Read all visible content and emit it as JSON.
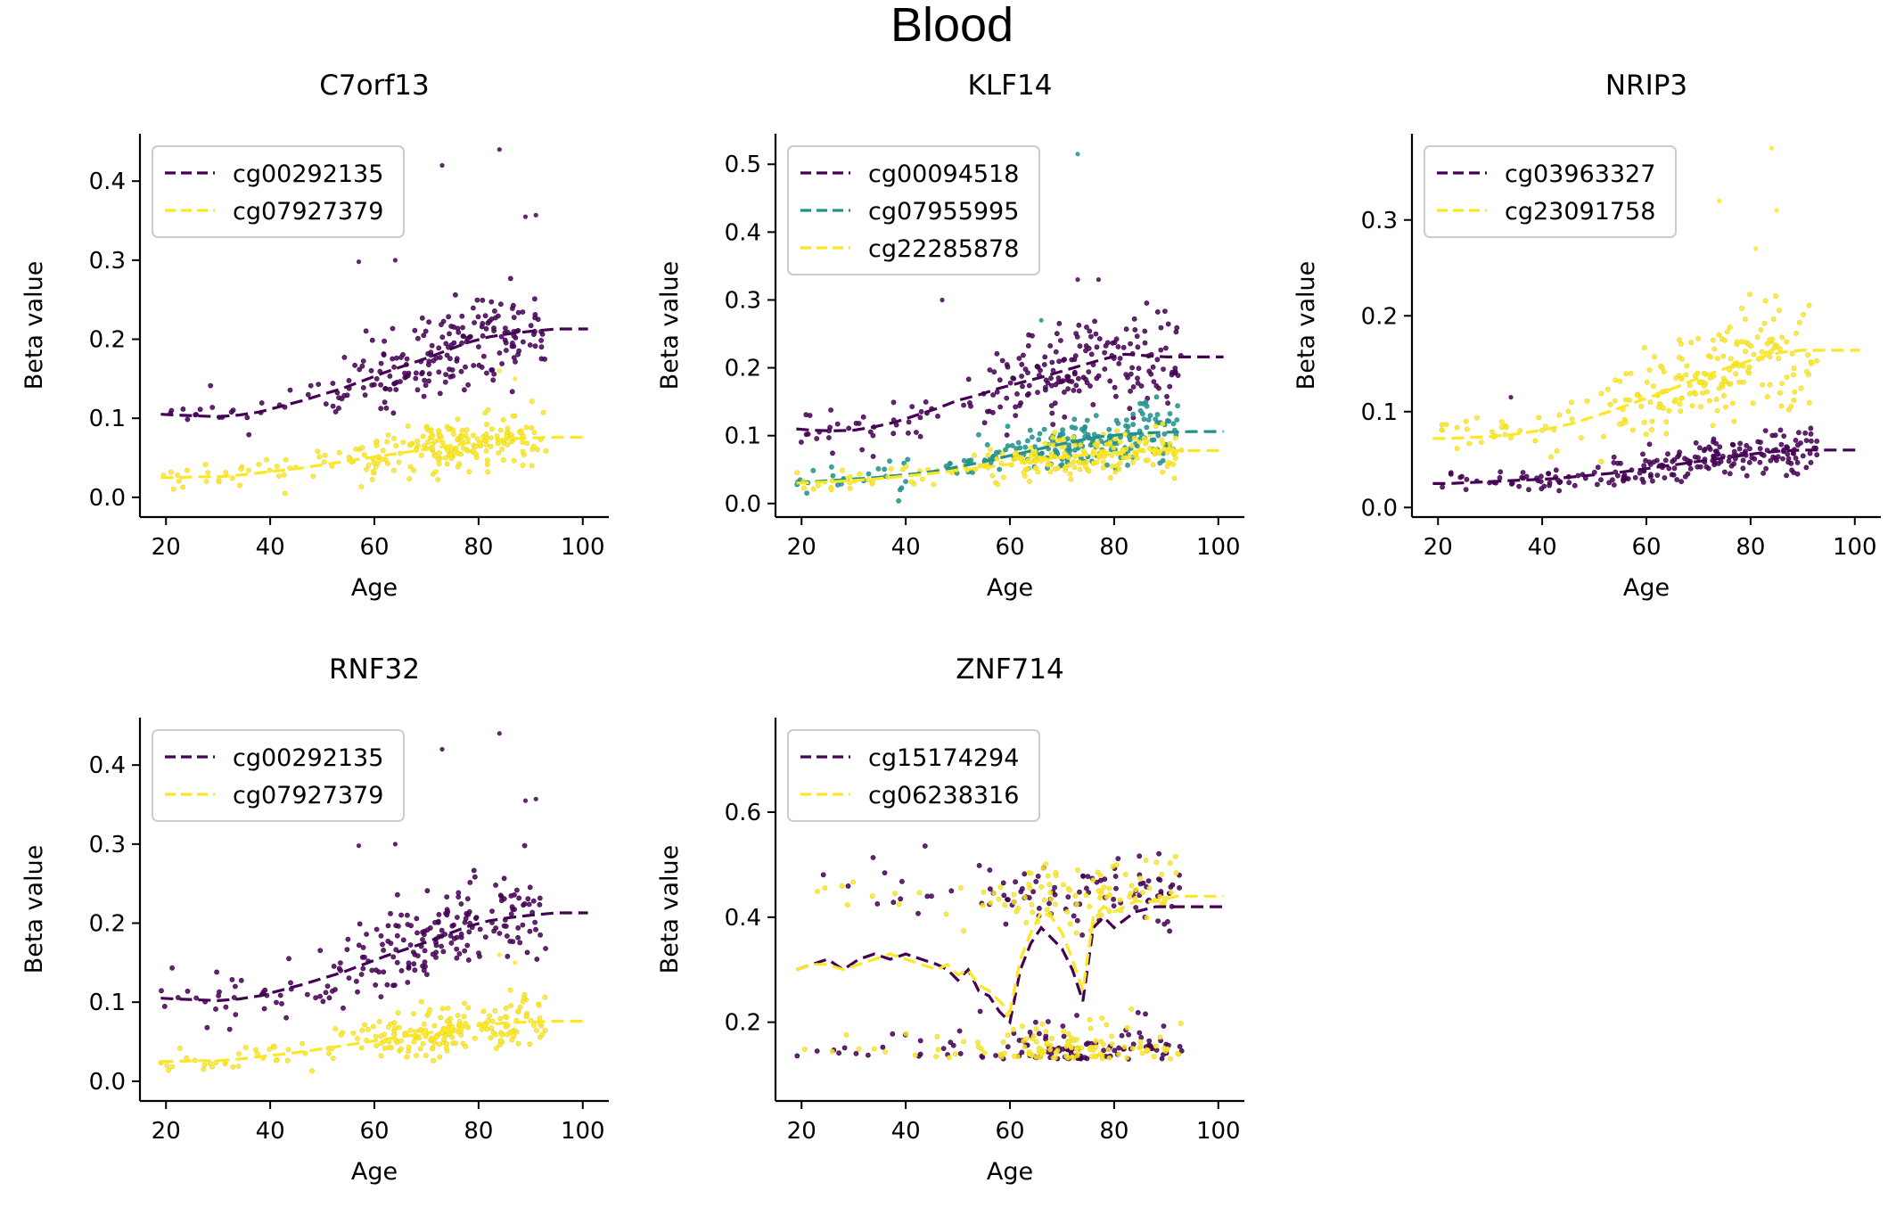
{
  "figure_title": "Blood",
  "chart_data": [
    {
      "type": "scatter",
      "title": "C7orf13",
      "xlabel": "Age",
      "ylabel": "Beta value",
      "xlim": [
        15,
        105
      ],
      "ylim": [
        -0.025,
        0.46
      ],
      "xticks": [
        20,
        40,
        60,
        80,
        100
      ],
      "yticks": [
        0.0,
        0.1,
        0.2,
        0.3,
        0.4
      ],
      "ytick_labels": [
        "0.0",
        "0.1",
        "0.2",
        "0.3",
        "0.4"
      ],
      "legend_position": "upper-left",
      "series": [
        {
          "name": "cg00292135",
          "color": "#440154",
          "x": [
            19,
            22,
            26,
            30,
            34,
            38,
            42,
            46,
            50,
            54,
            58,
            62,
            66,
            70,
            74,
            78,
            82,
            86,
            90,
            95,
            101
          ],
          "y": [
            0.105,
            0.104,
            0.103,
            0.102,
            0.104,
            0.108,
            0.115,
            0.122,
            0.13,
            0.138,
            0.148,
            0.158,
            0.167,
            0.176,
            0.186,
            0.196,
            0.203,
            0.207,
            0.21,
            0.213,
            0.213
          ],
          "spread": 0.045,
          "outliers": [
            [
              73,
              0.42
            ],
            [
              84,
              0.44
            ],
            [
              89,
              0.355
            ],
            [
              91,
              0.357
            ],
            [
              57,
              0.298
            ],
            [
              64,
              0.3
            ]
          ]
        },
        {
          "name": "cg07927379",
          "color": "#fde725",
          "x": [
            19,
            22,
            26,
            30,
            34,
            38,
            42,
            46,
            50,
            54,
            58,
            62,
            66,
            70,
            74,
            78,
            82,
            86,
            90,
            95,
            101
          ],
          "y": [
            0.025,
            0.025,
            0.026,
            0.026,
            0.028,
            0.031,
            0.034,
            0.037,
            0.041,
            0.045,
            0.049,
            0.053,
            0.057,
            0.061,
            0.065,
            0.069,
            0.072,
            0.074,
            0.075,
            0.076,
            0.076
          ],
          "spread": 0.025,
          "outliers": [
            [
              84,
              0.16
            ],
            [
              87,
              0.15
            ]
          ]
        }
      ]
    },
    {
      "type": "scatter",
      "title": "KLF14",
      "xlabel": "Age",
      "ylabel": "Beta value",
      "xlim": [
        15,
        105
      ],
      "ylim": [
        -0.02,
        0.545
      ],
      "xticks": [
        20,
        40,
        60,
        80,
        100
      ],
      "yticks": [
        0.0,
        0.1,
        0.2,
        0.3,
        0.4,
        0.5
      ],
      "ytick_labels": [
        "0.0",
        "0.1",
        "0.2",
        "0.3",
        "0.4",
        "0.5"
      ],
      "legend_position": "upper-left",
      "series": [
        {
          "name": "cg00094518",
          "color": "#440154",
          "x": [
            19,
            22,
            26,
            30,
            34,
            38,
            42,
            46,
            50,
            54,
            58,
            62,
            66,
            70,
            74,
            78,
            82,
            86,
            90,
            95,
            101
          ],
          "y": [
            0.11,
            0.108,
            0.107,
            0.108,
            0.113,
            0.12,
            0.13,
            0.14,
            0.152,
            0.16,
            0.17,
            0.178,
            0.186,
            0.195,
            0.204,
            0.213,
            0.22,
            0.218,
            0.216,
            0.216,
            0.216
          ],
          "spread": 0.05,
          "outliers": [
            [
              73,
              0.33
            ],
            [
              77,
              0.33
            ],
            [
              47,
              0.3
            ]
          ]
        },
        {
          "name": "cg07955995",
          "color": "#21918c",
          "x": [
            19,
            22,
            26,
            30,
            34,
            38,
            42,
            46,
            50,
            54,
            58,
            62,
            66,
            70,
            74,
            78,
            82,
            86,
            90,
            95,
            101
          ],
          "y": [
            0.03,
            0.032,
            0.034,
            0.036,
            0.038,
            0.041,
            0.044,
            0.048,
            0.054,
            0.06,
            0.067,
            0.074,
            0.081,
            0.088,
            0.094,
            0.099,
            0.102,
            0.104,
            0.105,
            0.106,
            0.106
          ],
          "spread": 0.03,
          "outliers": [
            [
              73,
              0.515
            ],
            [
              66,
              0.27
            ]
          ]
        },
        {
          "name": "cg22285878",
          "color": "#fde725",
          "x": [
            19,
            22,
            26,
            30,
            34,
            38,
            42,
            46,
            50,
            54,
            58,
            62,
            66,
            70,
            74,
            78,
            82,
            86,
            90,
            95,
            101
          ],
          "y": [
            0.03,
            0.031,
            0.032,
            0.034,
            0.036,
            0.039,
            0.042,
            0.045,
            0.049,
            0.052,
            0.056,
            0.06,
            0.064,
            0.068,
            0.071,
            0.074,
            0.076,
            0.077,
            0.078,
            0.078,
            0.078
          ],
          "spread": 0.022,
          "outliers": []
        }
      ]
    },
    {
      "type": "scatter",
      "title": "NRIP3",
      "xlabel": "Age",
      "ylabel": "Beta value",
      "xlim": [
        15,
        105
      ],
      "ylim": [
        -0.01,
        0.39
      ],
      "xticks": [
        20,
        40,
        60,
        80,
        100
      ],
      "yticks": [
        0.0,
        0.1,
        0.2,
        0.3
      ],
      "ytick_labels": [
        "0.0",
        "0.1",
        "0.2",
        "0.3"
      ],
      "legend_position": "upper-left",
      "series": [
        {
          "name": "cg03963327",
          "color": "#440154",
          "x": [
            19,
            22,
            26,
            30,
            34,
            38,
            42,
            46,
            50,
            54,
            58,
            62,
            66,
            70,
            74,
            78,
            82,
            86,
            90,
            95,
            101
          ],
          "y": [
            0.025,
            0.025,
            0.026,
            0.027,
            0.028,
            0.029,
            0.03,
            0.032,
            0.034,
            0.036,
            0.039,
            0.042,
            0.045,
            0.048,
            0.051,
            0.054,
            0.057,
            0.059,
            0.06,
            0.06,
            0.06
          ],
          "spread": 0.015,
          "outliers": [
            [
              34,
              0.115
            ]
          ]
        },
        {
          "name": "cg23091758",
          "color": "#fde725",
          "x": [
            19,
            22,
            26,
            30,
            34,
            38,
            42,
            46,
            50,
            54,
            58,
            62,
            66,
            70,
            74,
            78,
            82,
            86,
            90,
            95,
            101
          ],
          "y": [
            0.072,
            0.072,
            0.073,
            0.074,
            0.076,
            0.079,
            0.083,
            0.088,
            0.095,
            0.102,
            0.11,
            0.118,
            0.126,
            0.135,
            0.143,
            0.15,
            0.157,
            0.162,
            0.164,
            0.164,
            0.164
          ],
          "spread": 0.04,
          "outliers": [
            [
              84,
              0.375
            ],
            [
              85,
              0.31
            ],
            [
              74,
              0.32
            ],
            [
              81,
              0.27
            ]
          ]
        }
      ]
    },
    {
      "type": "scatter",
      "title": "RNF32",
      "xlabel": "Age",
      "ylabel": "Beta value",
      "xlim": [
        15,
        105
      ],
      "ylim": [
        -0.025,
        0.46
      ],
      "xticks": [
        20,
        40,
        60,
        80,
        100
      ],
      "yticks": [
        0.0,
        0.1,
        0.2,
        0.3,
        0.4
      ],
      "ytick_labels": [
        "0.0",
        "0.1",
        "0.2",
        "0.3",
        "0.4"
      ],
      "legend_position": "upper-left",
      "series": [
        {
          "name": "cg00292135",
          "color": "#440154",
          "x": [
            19,
            22,
            26,
            30,
            34,
            38,
            42,
            46,
            50,
            54,
            58,
            62,
            66,
            70,
            74,
            78,
            82,
            86,
            90,
            95,
            101
          ],
          "y": [
            0.105,
            0.104,
            0.103,
            0.102,
            0.104,
            0.108,
            0.115,
            0.122,
            0.13,
            0.138,
            0.148,
            0.158,
            0.167,
            0.176,
            0.186,
            0.196,
            0.203,
            0.207,
            0.21,
            0.213,
            0.213
          ],
          "spread": 0.045,
          "outliers": [
            [
              73,
              0.42
            ],
            [
              84,
              0.44
            ],
            [
              89,
              0.355
            ],
            [
              91,
              0.357
            ],
            [
              57,
              0.298
            ],
            [
              64,
              0.3
            ]
          ]
        },
        {
          "name": "cg07927379",
          "color": "#fde725",
          "x": [
            19,
            22,
            26,
            30,
            34,
            38,
            42,
            46,
            50,
            54,
            58,
            62,
            66,
            70,
            74,
            78,
            82,
            86,
            90,
            95,
            101
          ],
          "y": [
            0.025,
            0.025,
            0.026,
            0.026,
            0.028,
            0.031,
            0.034,
            0.037,
            0.041,
            0.045,
            0.049,
            0.053,
            0.057,
            0.061,
            0.065,
            0.069,
            0.072,
            0.074,
            0.075,
            0.076,
            0.076
          ],
          "spread": 0.025,
          "outliers": [
            [
              84,
              0.16
            ],
            [
              87,
              0.15
            ]
          ]
        }
      ]
    },
    {
      "type": "scatter",
      "title": "ZNF714",
      "xlabel": "Age",
      "ylabel": "Beta value",
      "xlim": [
        15,
        105
      ],
      "ylim": [
        0.05,
        0.78
      ],
      "xticks": [
        20,
        40,
        60,
        80,
        100
      ],
      "yticks": [
        0.2,
        0.4,
        0.6
      ],
      "ytick_labels": [
        "0.2",
        "0.4",
        "0.6"
      ],
      "legend_position": "upper-left",
      "bimodal": true,
      "series": [
        {
          "name": "cg15174294",
          "color": "#440154",
          "x": [
            19,
            22,
            25,
            28,
            31,
            34,
            37,
            40,
            43,
            46,
            48,
            50,
            52,
            54,
            56,
            58,
            60,
            62,
            64,
            66,
            68,
            70,
            72,
            74,
            76,
            78,
            80,
            84,
            88,
            92,
            96,
            101
          ],
          "y": [
            0.3,
            0.31,
            0.32,
            0.3,
            0.32,
            0.33,
            0.32,
            0.33,
            0.32,
            0.31,
            0.3,
            0.28,
            0.3,
            0.26,
            0.25,
            0.22,
            0.2,
            0.3,
            0.35,
            0.38,
            0.36,
            0.34,
            0.3,
            0.24,
            0.38,
            0.4,
            0.38,
            0.41,
            0.42,
            0.42,
            0.42,
            0.42
          ],
          "spread": 0.0,
          "outliers": []
        },
        {
          "name": "cg06238316",
          "color": "#fde725",
          "x": [
            19,
            22,
            25,
            28,
            31,
            34,
            37,
            40,
            43,
            46,
            48,
            50,
            52,
            54,
            56,
            58,
            60,
            62,
            64,
            66,
            68,
            70,
            72,
            74,
            76,
            78,
            80,
            84,
            88,
            92,
            96,
            101
          ],
          "y": [
            0.3,
            0.31,
            0.31,
            0.3,
            0.31,
            0.32,
            0.33,
            0.32,
            0.31,
            0.3,
            0.31,
            0.29,
            0.3,
            0.27,
            0.26,
            0.24,
            0.22,
            0.32,
            0.37,
            0.41,
            0.4,
            0.37,
            0.32,
            0.26,
            0.4,
            0.42,
            0.41,
            0.43,
            0.43,
            0.44,
            0.44,
            0.44
          ],
          "spread": 0.0,
          "outliers": []
        }
      ]
    }
  ]
}
